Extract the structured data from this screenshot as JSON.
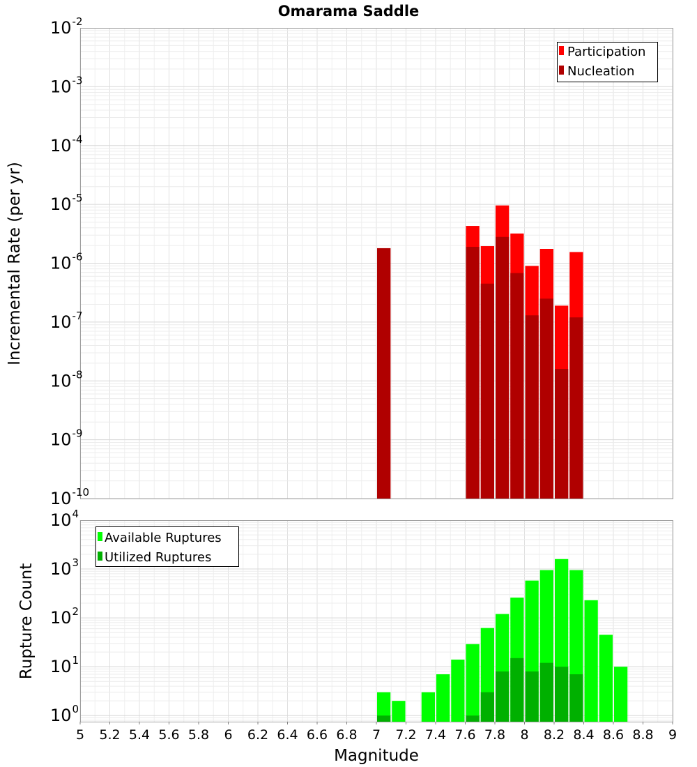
{
  "chart_data": [
    {
      "type": "bar",
      "title": "Omarama Saddle",
      "xlabel": "",
      "ylabel": "Incremental Rate (per yr)",
      "yscale": "log",
      "ylim": [
        1e-10,
        0.01
      ],
      "xlim": [
        5,
        9
      ],
      "ytick_exponents": [
        -10,
        -9,
        -8,
        -7,
        -6,
        -5,
        -4,
        -3,
        -2
      ],
      "bin_width": 0.1,
      "legend": "top-right",
      "grid": true,
      "colors": {
        "Participation": "#ff0000",
        "Nucleation": "#b00000"
      },
      "series": [
        {
          "name": "Participation",
          "x": [
            7.05,
            7.65,
            7.75,
            7.85,
            7.95,
            8.05,
            8.15,
            8.25,
            8.35
          ],
          "values": [
            1.8e-06,
            4.3e-06,
            1.95e-06,
            9.6e-06,
            3.2e-06,
            9e-07,
            1.75e-06,
            1.9e-07,
            1.55e-06
          ]
        },
        {
          "name": "Nucleation",
          "x": [
            7.05,
            7.65,
            7.75,
            7.85,
            7.95,
            8.05,
            8.15,
            8.25,
            8.35
          ],
          "values": [
            1.8e-06,
            1.9e-06,
            4.5e-07,
            2.8e-06,
            6.8e-07,
            1.3e-07,
            2.5e-07,
            1.6e-08,
            1.2e-07
          ]
        }
      ]
    },
    {
      "type": "bar",
      "xlabel": "Magnitude",
      "ylabel": "Rupture Count",
      "yscale": "log",
      "ylim": [
        0.75,
        10000
      ],
      "xlim": [
        5,
        9
      ],
      "xticks": [
        "5",
        "5.2",
        "5.4",
        "5.6",
        "5.8",
        "6",
        "6.2",
        "6.4",
        "6.6",
        "6.8",
        "7",
        "7.2",
        "7.4",
        "7.6",
        "7.8",
        "8",
        "8.2",
        "8.4",
        "8.6",
        "8.8",
        "9"
      ],
      "ytick_exponents": [
        0,
        1,
        2,
        3,
        4
      ],
      "bin_width": 0.1,
      "legend": "top-left",
      "grid": true,
      "colors": {
        "Available Ruptures": "#00ff00",
        "Utilized Ruptures": "#00b000"
      },
      "series": [
        {
          "name": "Available Ruptures",
          "x": [
            7.05,
            7.15,
            7.35,
            7.45,
            7.55,
            7.65,
            7.75,
            7.85,
            7.95,
            8.05,
            8.15,
            8.25,
            8.35,
            8.45,
            8.55,
            8.65
          ],
          "values": [
            3,
            2,
            3,
            7,
            14,
            29,
            62,
            120,
            260,
            580,
            950,
            1600,
            950,
            230,
            45,
            10
          ]
        },
        {
          "name": "Utilized Ruptures",
          "x": [
            7.05,
            7.65,
            7.75,
            7.85,
            7.95,
            8.05,
            8.15,
            8.25,
            8.35
          ],
          "values": [
            1,
            1,
            3,
            8,
            15,
            8,
            12,
            10,
            7
          ]
        }
      ]
    }
  ]
}
